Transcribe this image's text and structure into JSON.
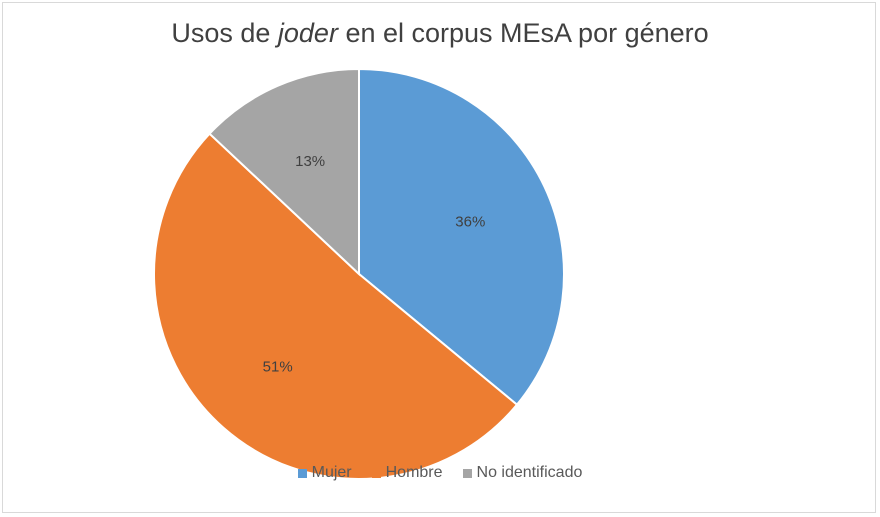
{
  "title": {
    "prefix": "Usos de ",
    "italic": "joder",
    "suffix": " en el corpus MEsA por género"
  },
  "chart_data": {
    "type": "pie",
    "categories": [
      "Mujer",
      "Hombre",
      "No identificado"
    ],
    "values": [
      36,
      51,
      13
    ],
    "labels": [
      "36%",
      "51%",
      "13%"
    ],
    "colors": [
      "#5b9bd5",
      "#ed7d31",
      "#a5a5a5"
    ],
    "legend_placement": "bottom"
  }
}
